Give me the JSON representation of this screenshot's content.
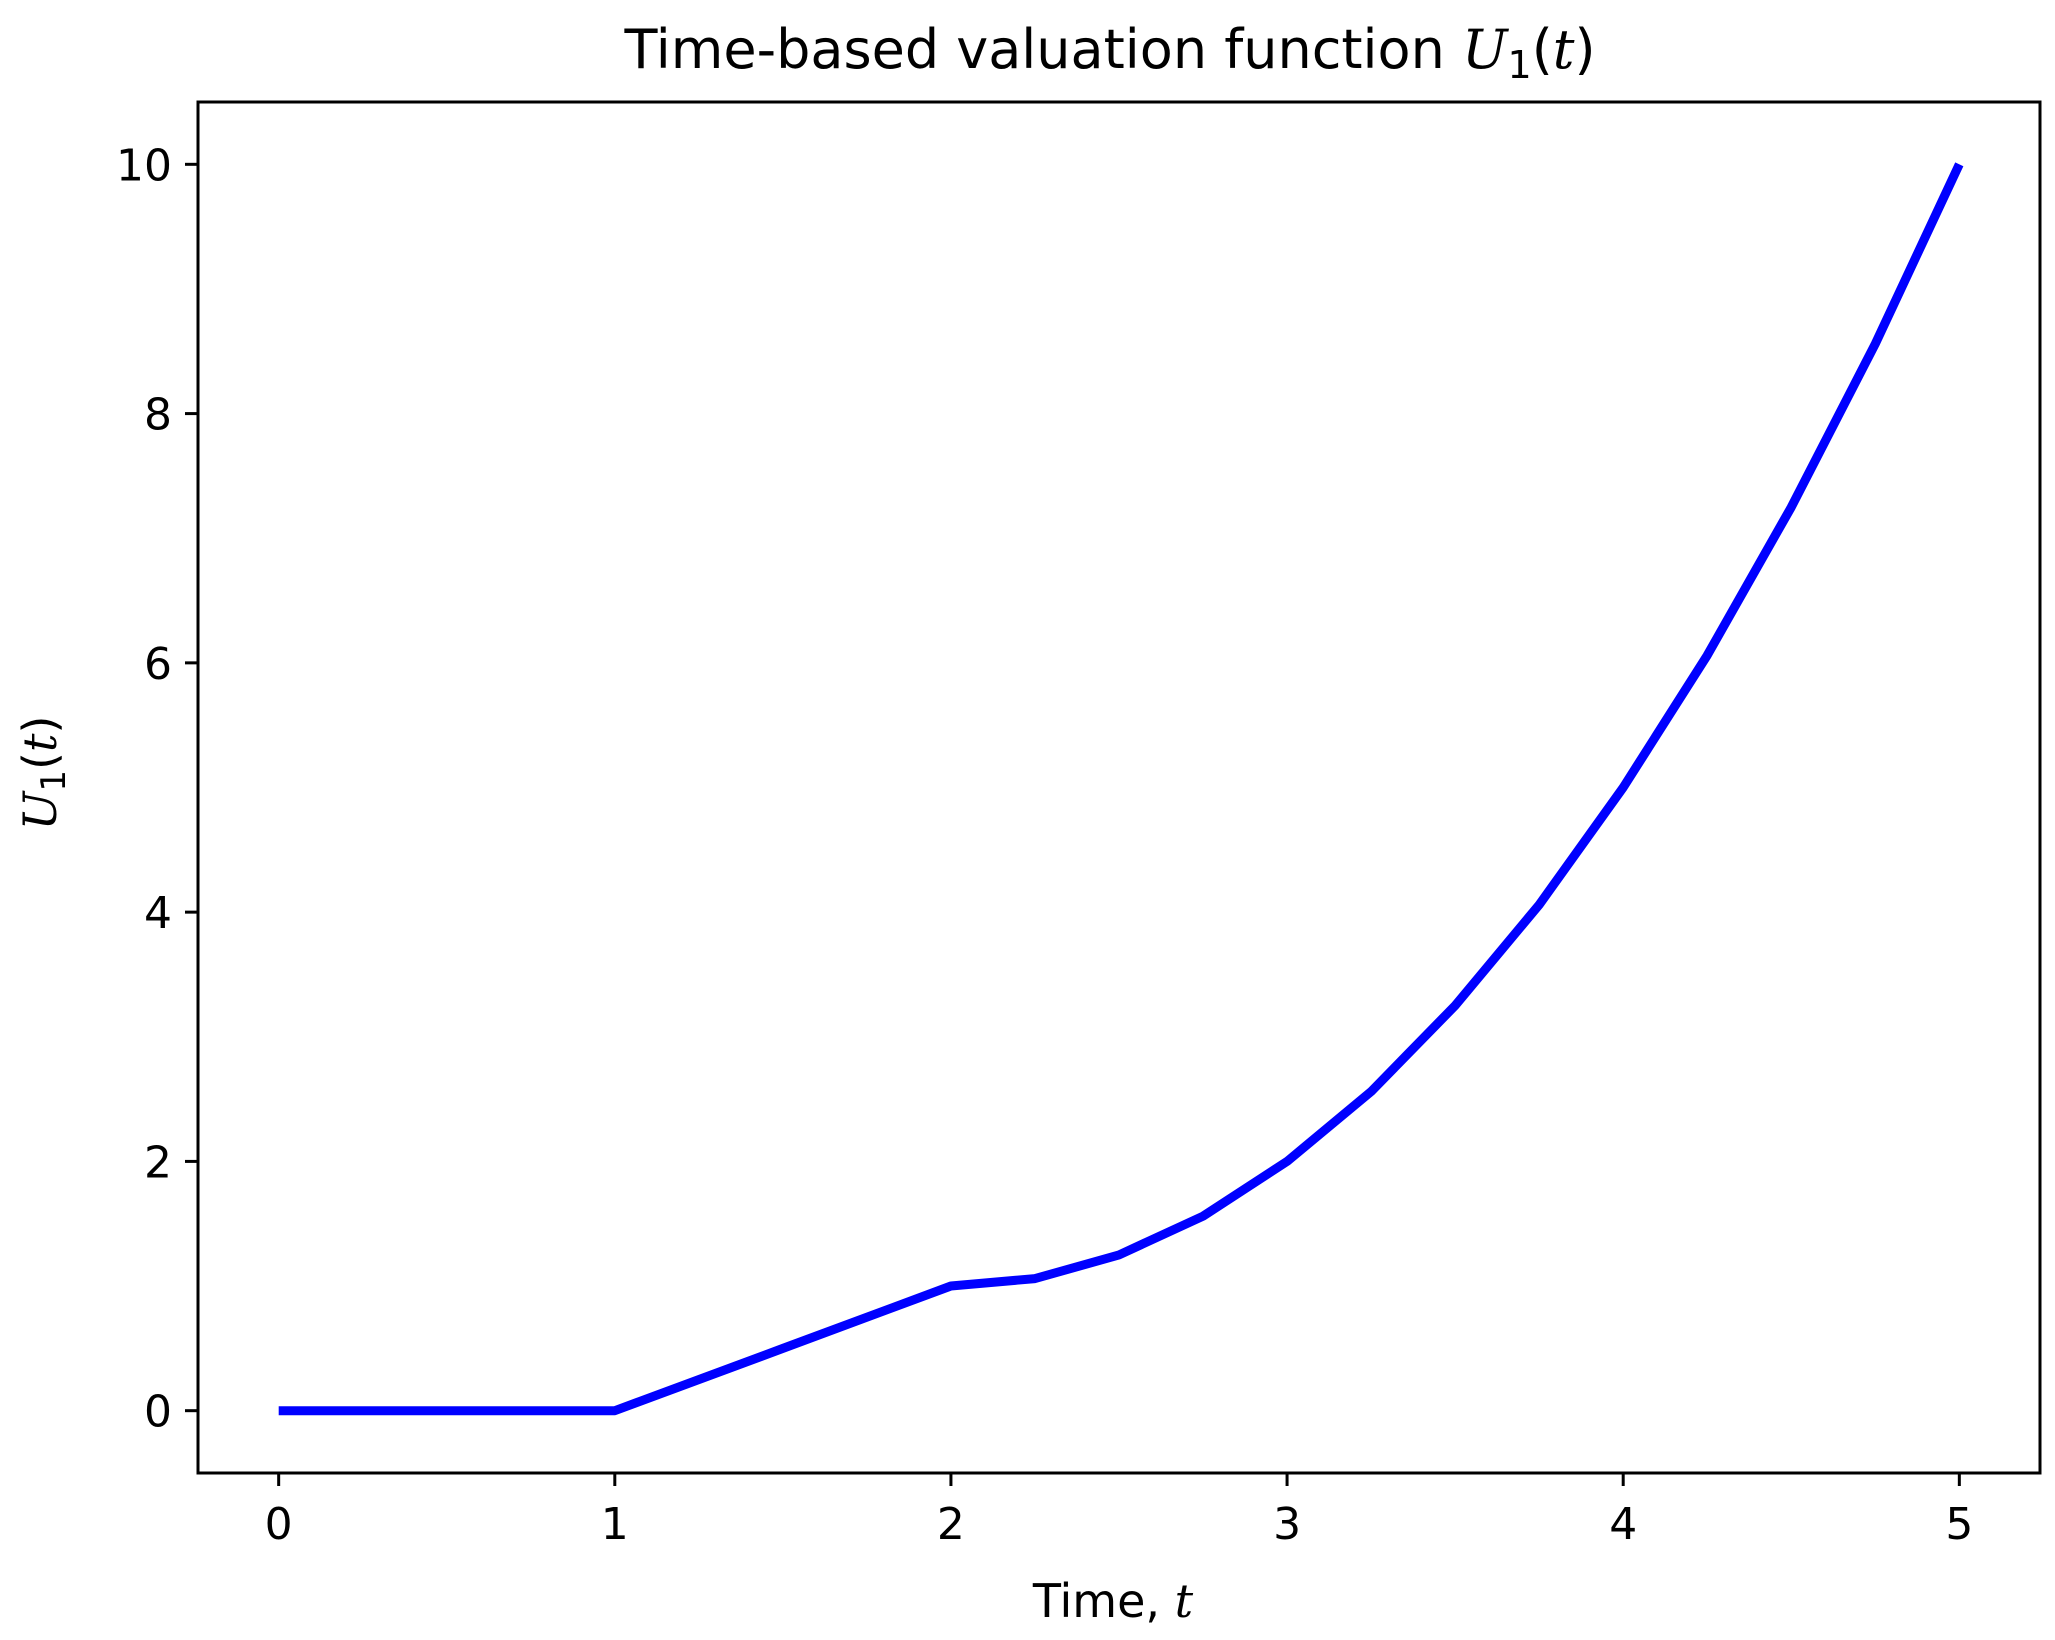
{
  "chart_data": {
    "type": "line",
    "title": {
      "prefix": "Time-based valuation function ",
      "var": "U",
      "sub": "1",
      "open": "(",
      "arg": "t",
      "close": ")"
    },
    "xlabel": {
      "prefix": "Time, ",
      "var": "t"
    },
    "ylabel": {
      "var": "U",
      "sub": "1",
      "open": "(",
      "arg": "t",
      "close": ")"
    },
    "xlim": [
      -0.24,
      5.24
    ],
    "ylim": [
      -0.5,
      10.5
    ],
    "xticks": [
      0,
      1,
      2,
      3,
      4,
      5
    ],
    "xtick_labels": [
      "0",
      "1",
      "2",
      "3",
      "4",
      "5"
    ],
    "yticks": [
      0,
      2,
      4,
      6,
      8,
      10
    ],
    "ytick_labels": [
      "0",
      "2",
      "4",
      "6",
      "8",
      "10"
    ],
    "grid": false,
    "line_color": "#0000ff",
    "series": [
      {
        "x": [
          0,
          0.5,
          1,
          1.5,
          2,
          2.25,
          2.5,
          2.75,
          3,
          3.25,
          3.5,
          3.75,
          4,
          4.25,
          4.5,
          4.75,
          5
        ],
        "y": [
          0,
          0,
          0,
          0.5,
          1,
          1.06,
          1.25,
          1.56,
          2,
          2.56,
          3.25,
          4.06,
          5,
          6.06,
          7.25,
          8.56,
          10
        ]
      }
    ]
  }
}
